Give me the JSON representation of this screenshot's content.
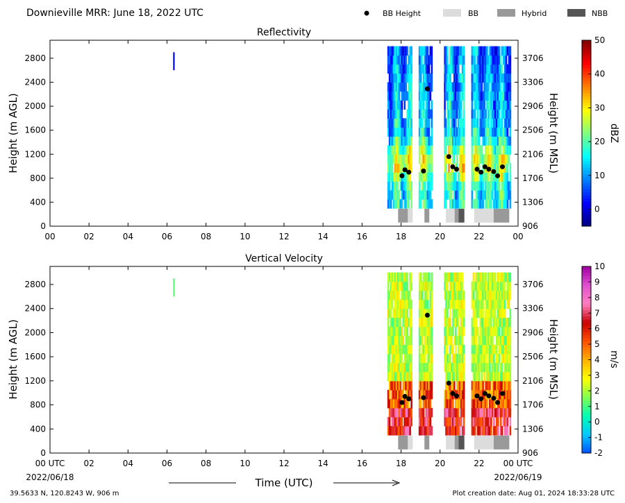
{
  "header": {
    "title": "Downieville MRR:  June 18, 2022 UTC",
    "legend": [
      {
        "label": "BB Height",
        "kind": "dot",
        "color": "#000000"
      },
      {
        "label": "BB",
        "kind": "box",
        "color": "#dcdcdc"
      },
      {
        "label": "Hybrid",
        "kind": "box",
        "color": "#999999"
      },
      {
        "label": "NBB",
        "kind": "box",
        "color": "#555555"
      }
    ]
  },
  "footer": {
    "location": "39.5633 N, 120.8243 W, 906 m",
    "creation": "Plot creation date: Aug 01, 2024 18:33:28 UTC",
    "time_axis_label": "Time (UTC)",
    "start_date": "2022/06/18",
    "end_date": "2022/06/19",
    "start_tick": "00 UTC",
    "end_tick": "00 UTC"
  },
  "chart_data": [
    {
      "type": "heatmap",
      "title": "Reflectivity",
      "ylabel": "Height (m AGL)",
      "ylabel_right": "Height (m MSL)",
      "xlim": [
        0,
        24
      ],
      "ylim": [
        0,
        3100
      ],
      "x_ticks": [
        "00",
        "02",
        "04",
        "06",
        "08",
        "10",
        "12",
        "14",
        "16",
        "18",
        "20",
        "22",
        "00"
      ],
      "y_ticks": [
        0,
        400,
        800,
        1200,
        1600,
        2000,
        2400,
        2800
      ],
      "y_ticks_right": [
        906,
        1306,
        1706,
        2106,
        2506,
        2906,
        3306,
        3706
      ],
      "colorbar": {
        "label": "dBZ",
        "range": [
          -5,
          50
        ],
        "ticks": [
          0,
          10,
          20,
          30,
          40,
          50
        ],
        "colors": [
          "#00007f",
          "#0000ff",
          "#0080ff",
          "#00ffff",
          "#80ff80",
          "#ffff00",
          "#ff8000",
          "#ff0000",
          "#7f0000"
        ]
      },
      "precip_periods_utc": [
        [
          17.3,
          18.5
        ],
        [
          18.9,
          19.6
        ],
        [
          20.2,
          21.2
        ],
        [
          21.6,
          23.6
        ]
      ],
      "isolated_echo": {
        "time": 6.35,
        "height_range": [
          2600,
          2900
        ],
        "value": 2
      },
      "bright_band_height": [
        {
          "time": 18.05,
          "height": 840
        },
        {
          "time": 18.2,
          "height": 940
        },
        {
          "time": 18.4,
          "height": 900
        },
        {
          "time": 19.15,
          "height": 920
        },
        {
          "time": 19.35,
          "height": 2290
        },
        {
          "time": 20.45,
          "height": 1160
        },
        {
          "time": 20.65,
          "height": 990
        },
        {
          "time": 20.85,
          "height": 950
        },
        {
          "time": 21.9,
          "height": 950
        },
        {
          "time": 22.1,
          "height": 900
        },
        {
          "time": 22.3,
          "height": 990
        },
        {
          "time": 22.5,
          "height": 950
        },
        {
          "time": 22.75,
          "height": 910
        },
        {
          "time": 22.95,
          "height": 840
        },
        {
          "time": 23.2,
          "height": 990
        }
      ],
      "bb_type_strip": [
        {
          "start": 17.85,
          "end": 18.35,
          "type": "Hybrid"
        },
        {
          "start": 18.35,
          "end": 18.6,
          "type": "BB"
        },
        {
          "start": 19.2,
          "end": 19.45,
          "type": "Hybrid"
        },
        {
          "start": 20.3,
          "end": 20.75,
          "type": "BB"
        },
        {
          "start": 20.75,
          "end": 20.95,
          "type": "Hybrid"
        },
        {
          "start": 20.95,
          "end": 21.25,
          "type": "NBB"
        },
        {
          "start": 21.75,
          "end": 22.75,
          "type": "BB"
        },
        {
          "start": 22.75,
          "end": 23.55,
          "type": "Hybrid"
        }
      ]
    },
    {
      "type": "heatmap",
      "title": "Vertical Velocity",
      "ylabel": "Height (m AGL)",
      "ylabel_right": "Height (m MSL)",
      "xlim": [
        0,
        24
      ],
      "ylim": [
        0,
        3100
      ],
      "x_ticks": [
        "00 UTC",
        "02",
        "04",
        "06",
        "08",
        "10",
        "12",
        "14",
        "16",
        "18",
        "20",
        "22",
        "00 UTC"
      ],
      "y_ticks": [
        0,
        400,
        800,
        1200,
        1600,
        2000,
        2400,
        2800
      ],
      "y_ticks_right": [
        906,
        1306,
        1706,
        2106,
        2506,
        2906,
        3306,
        3706
      ],
      "colorbar": {
        "label": "m/s",
        "range": [
          -2,
          10
        ],
        "ticks": [
          -2,
          -1,
          0,
          1,
          2,
          3,
          4,
          5,
          6,
          7,
          8,
          9,
          10
        ],
        "colors": [
          "#0050ff",
          "#00c8ff",
          "#00ffb4",
          "#80ff50",
          "#ffff00",
          "#ffb000",
          "#ff5000",
          "#c80000",
          "#ff80c0",
          "#e050d0",
          "#a000a0"
        ]
      },
      "precip_periods_utc": [
        [
          17.3,
          18.5
        ],
        [
          18.9,
          19.6
        ],
        [
          20.2,
          21.2
        ],
        [
          21.6,
          23.6
        ]
      ],
      "isolated_echo": {
        "time": 6.35,
        "height_range": [
          2600,
          2900
        ],
        "value": 1.2
      },
      "bright_band_height": [
        {
          "time": 18.05,
          "height": 840
        },
        {
          "time": 18.2,
          "height": 940
        },
        {
          "time": 18.4,
          "height": 900
        },
        {
          "time": 19.15,
          "height": 920
        },
        {
          "time": 19.35,
          "height": 2290
        },
        {
          "time": 20.45,
          "height": 1160
        },
        {
          "time": 20.65,
          "height": 990
        },
        {
          "time": 20.85,
          "height": 950
        },
        {
          "time": 21.9,
          "height": 950
        },
        {
          "time": 22.1,
          "height": 900
        },
        {
          "time": 22.3,
          "height": 990
        },
        {
          "time": 22.5,
          "height": 950
        },
        {
          "time": 22.75,
          "height": 910
        },
        {
          "time": 22.95,
          "height": 840
        },
        {
          "time": 23.2,
          "height": 990
        }
      ],
      "bb_type_strip": [
        {
          "start": 17.85,
          "end": 18.35,
          "type": "Hybrid"
        },
        {
          "start": 18.35,
          "end": 18.6,
          "type": "BB"
        },
        {
          "start": 19.2,
          "end": 19.45,
          "type": "Hybrid"
        },
        {
          "start": 20.3,
          "end": 20.75,
          "type": "BB"
        },
        {
          "start": 20.75,
          "end": 20.95,
          "type": "Hybrid"
        },
        {
          "start": 20.95,
          "end": 21.25,
          "type": "NBB"
        },
        {
          "start": 21.75,
          "end": 22.75,
          "type": "BB"
        },
        {
          "start": 22.75,
          "end": 23.55,
          "type": "Hybrid"
        }
      ]
    }
  ]
}
